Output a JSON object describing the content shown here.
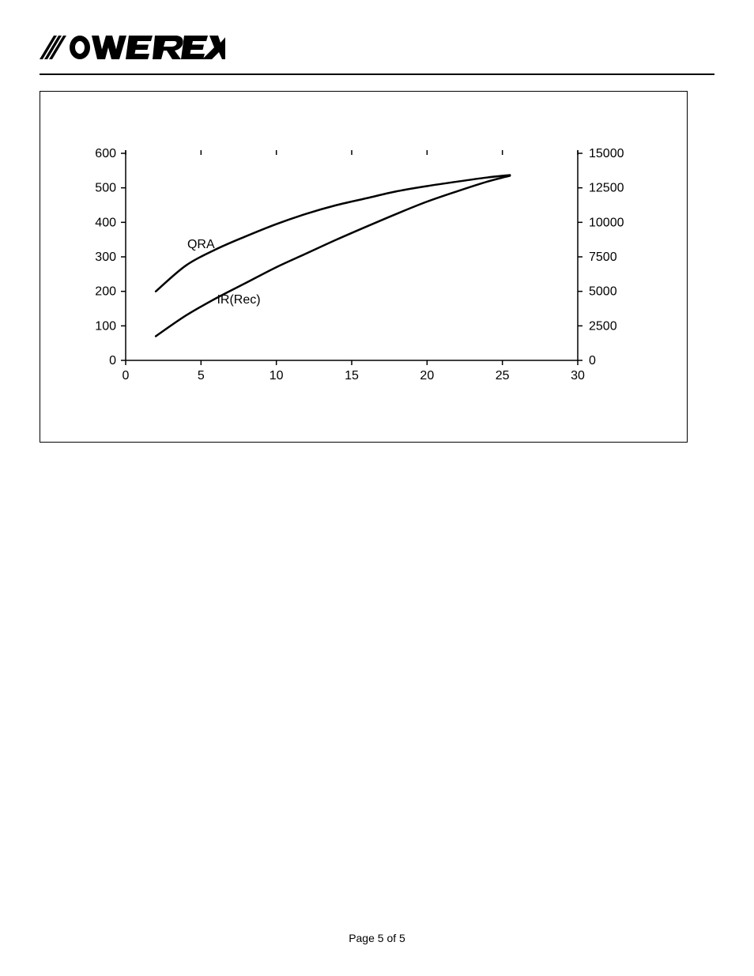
{
  "footer": {
    "text": "Page 5 of 5"
  },
  "chart": {
    "type": "line",
    "background_color": "#ffffff",
    "border_color": "#000000",
    "axis_color": "#000000",
    "grid_color": "#000000",
    "line_color": "#000000",
    "line_width": 2.5,
    "font_family": "Arial",
    "tick_fontsize": 16,
    "label_fontsize": 16,
    "x": {
      "min": 0,
      "max": 30,
      "ticks": [
        0,
        5,
        10,
        15,
        20,
        25,
        30
      ]
    },
    "y_left": {
      "min": 0,
      "max": 600,
      "ticks": [
        0,
        100,
        200,
        300,
        400,
        500,
        600
      ]
    },
    "y_right": {
      "min": 0,
      "max": 15000,
      "ticks": [
        0,
        2500,
        5000,
        7500,
        10000,
        12500,
        15000
      ]
    },
    "series": [
      {
        "name": "QRA",
        "label": "QRA",
        "label_pos": {
          "x": 5,
          "y": 325
        },
        "color": "#000000",
        "points": [
          {
            "x": 2,
            "y": 200
          },
          {
            "x": 4,
            "y": 275
          },
          {
            "x": 6,
            "y": 322
          },
          {
            "x": 8,
            "y": 360
          },
          {
            "x": 10,
            "y": 395
          },
          {
            "x": 12,
            "y": 425
          },
          {
            "x": 14,
            "y": 450
          },
          {
            "x": 16,
            "y": 470
          },
          {
            "x": 18,
            "y": 490
          },
          {
            "x": 20,
            "y": 505
          },
          {
            "x": 22,
            "y": 518
          },
          {
            "x": 24,
            "y": 530
          },
          {
            "x": 25.5,
            "y": 537
          }
        ]
      },
      {
        "name": "IR(Rec)",
        "label": "IR(Rec)",
        "label_pos": {
          "x": 7.5,
          "y": 165
        },
        "color": "#000000",
        "points": [
          {
            "x": 2,
            "y": 70
          },
          {
            "x": 4,
            "y": 130
          },
          {
            "x": 6,
            "y": 180
          },
          {
            "x": 8,
            "y": 225
          },
          {
            "x": 10,
            "y": 270
          },
          {
            "x": 12,
            "y": 310
          },
          {
            "x": 14,
            "y": 350
          },
          {
            "x": 16,
            "y": 388
          },
          {
            "x": 18,
            "y": 425
          },
          {
            "x": 20,
            "y": 460
          },
          {
            "x": 22,
            "y": 490
          },
          {
            "x": 24,
            "y": 518
          },
          {
            "x": 25.5,
            "y": 535
          }
        ]
      }
    ]
  }
}
